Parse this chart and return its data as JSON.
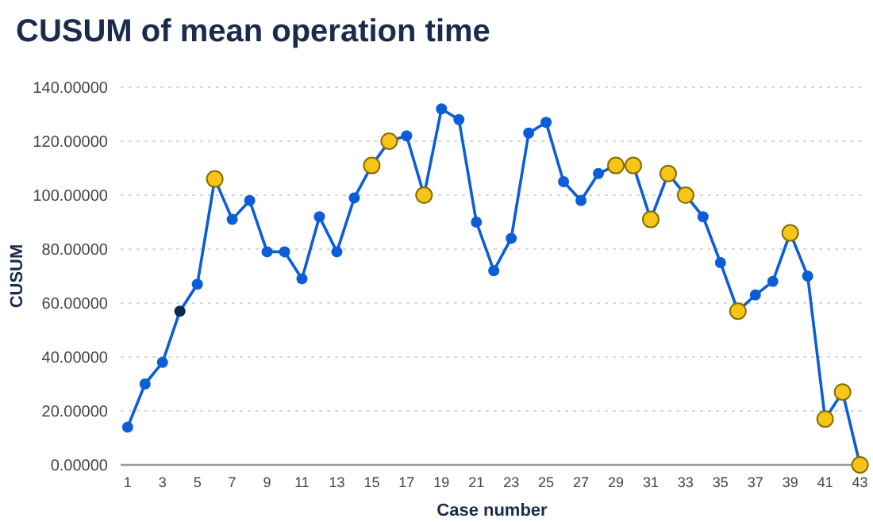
{
  "chart_data": {
    "type": "line",
    "title": "CUSUM of mean operation time",
    "xlabel": "Case number",
    "ylabel": "CUSUM",
    "x": [
      1,
      2,
      3,
      4,
      5,
      6,
      7,
      8,
      9,
      10,
      11,
      12,
      13,
      14,
      15,
      16,
      17,
      18,
      19,
      20,
      21,
      22,
      23,
      24,
      25,
      26,
      27,
      28,
      29,
      30,
      31,
      32,
      33,
      34,
      35,
      36,
      37,
      38,
      39,
      40,
      41,
      42,
      43
    ],
    "series": [
      {
        "color": "#0b5ed7",
        "values": [
          14,
          30,
          38,
          57,
          67,
          106,
          91,
          98,
          79,
          79,
          69,
          92,
          79,
          99,
          111,
          120,
          122,
          100,
          132,
          128,
          90,
          72,
          84,
          123,
          127,
          105,
          98,
          108,
          111,
          111,
          91,
          108,
          100,
          92,
          75,
          57,
          63,
          68,
          86,
          70,
          17,
          27,
          0
        ],
        "colors": [
          "#0b5ed7",
          "#0b5ed7",
          "#0b5ed7",
          "#0d2a4a",
          "#0b5ed7",
          "#f5c518",
          "#0b5ed7",
          "#0b5ed7",
          "#0b5ed7",
          "#0b5ed7",
          "#0b5ed7",
          "#0b5ed7",
          "#0b5ed7",
          "#0b5ed7",
          "#f5c518",
          "#f5c518",
          "#0b5ed7",
          "#f5c518",
          "#0b5ed7",
          "#0b5ed7",
          "#0b5ed7",
          "#0b5ed7",
          "#0b5ed7",
          "#0b5ed7",
          "#0b5ed7",
          "#0b5ed7",
          "#0b5ed7",
          "#0b5ed7",
          "#f5c518",
          "#f5c518",
          "#f5c518",
          "#f5c518",
          "#f5c518",
          "#0b5ed7",
          "#0b5ed7",
          "#f5c518",
          "#0b5ed7",
          "#0b5ed7",
          "#f5c518",
          "#0b5ed7",
          "#f5c518",
          "#f5c518",
          "#f5c518"
        ]
      }
    ],
    "xlim": [
      0.6,
      43.2
    ],
    "xticks": [
      1,
      3,
      5,
      7,
      9,
      11,
      13,
      15,
      17,
      19,
      21,
      23,
      25,
      27,
      29,
      31,
      33,
      35,
      37,
      39,
      41,
      43
    ],
    "ylim": [
      0,
      140
    ],
    "yticks": [
      {
        "value": 0,
        "label": "0.00000"
      },
      {
        "value": 20,
        "label": "20.00000"
      },
      {
        "value": 40,
        "label": "40.00000"
      },
      {
        "value": 60,
        "label": "60.00000"
      },
      {
        "value": 80,
        "label": "80.00000"
      },
      {
        "value": 100,
        "label": "100.00000"
      },
      {
        "value": 120,
        "label": "120.00000"
      },
      {
        "value": 140,
        "label": "140.00000"
      }
    ],
    "grid": "y",
    "marker": "circle",
    "line_style": "solid"
  }
}
